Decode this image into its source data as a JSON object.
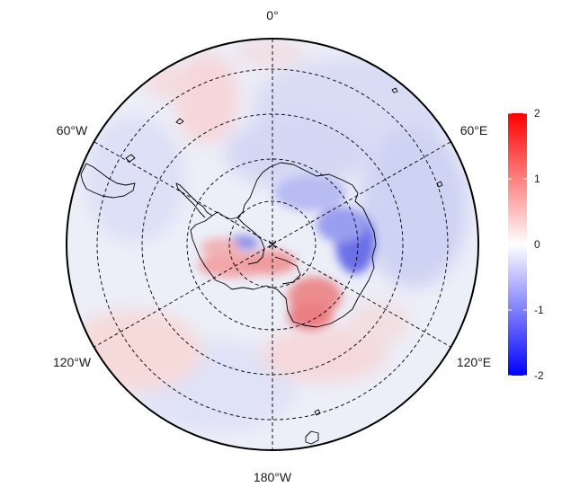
{
  "map": {
    "projection": "south-polar-stereographic",
    "longitude_labels": {
      "top": "0°",
      "upper_left": "60°W",
      "upper_right": "60°E",
      "lower_left": "120°W",
      "lower_right": "120°E",
      "bottom": "180°W"
    },
    "graticule": {
      "style": "dashed",
      "meridians_every_deg": 60,
      "latitude_circles": 5
    },
    "field_colors": {
      "negative": "#0000ff",
      "neutral": "#ffffff",
      "positive": "#ff0000"
    }
  },
  "colorbar": {
    "min": -2,
    "max": 2,
    "ticks": [
      "2",
      "1",
      "0",
      "-1",
      "-2"
    ],
    "tick_values": [
      2,
      1,
      0,
      -1,
      -2
    ]
  }
}
